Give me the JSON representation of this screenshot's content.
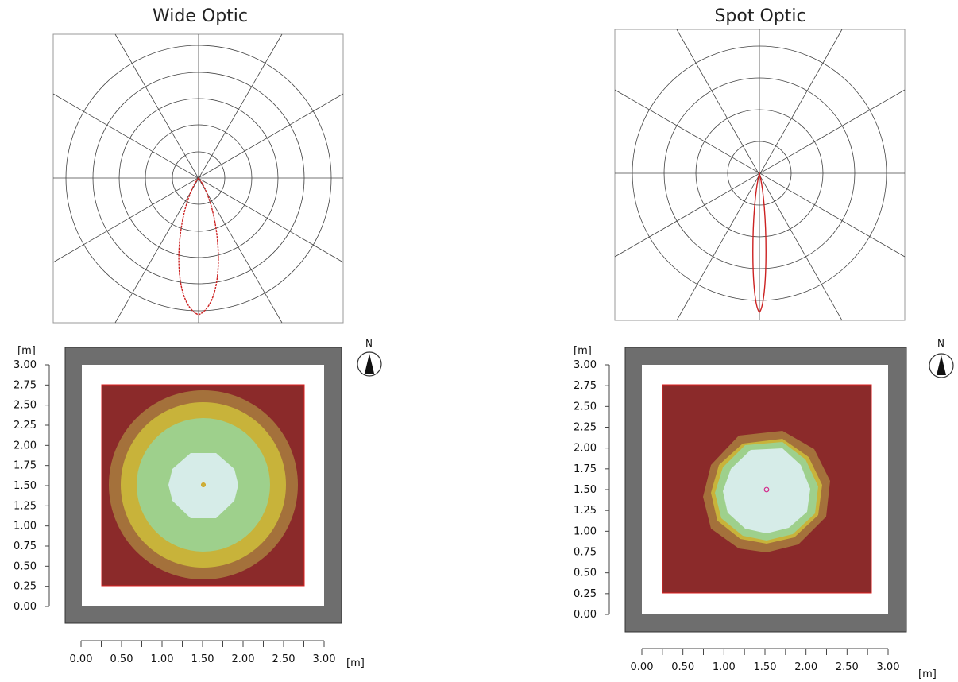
{
  "panels": [
    {
      "title": "Wide Optic",
      "unit_label": "[m]",
      "north_label": "N",
      "axis_ticks": [
        "0.00",
        "0.25",
        "0.50",
        "0.75",
        "1.00",
        "1.25",
        "1.50",
        "1.75",
        "2.00",
        "2.25",
        "2.50",
        "2.75",
        "3.00"
      ],
      "x_axis_ticks": [
        "0.00",
        "0.50",
        "1.00",
        "1.50",
        "2.00",
        "2.50",
        "3.00"
      ],
      "polar_curve_color": "#cc2222",
      "contour_colors": [
        "#8b2a2a",
        "#a4713b",
        "#c8b33a",
        "#9ed08c",
        "#d6ece8"
      ]
    },
    {
      "title": "Spot Optic",
      "unit_label": "[m]",
      "north_label": "N",
      "axis_ticks": [
        "0.00",
        "0.25",
        "0.50",
        "0.75",
        "1.00",
        "1.25",
        "1.50",
        "1.75",
        "2.00",
        "2.25",
        "2.50",
        "2.75",
        "3.00"
      ],
      "x_axis_ticks": [
        "0.00",
        "0.50",
        "1.00",
        "1.50",
        "2.00",
        "2.50",
        "3.00"
      ],
      "polar_curve_color": "#cc2222",
      "contour_colors": [
        "#8b2a2a",
        "#a4713b",
        "#c8b33a",
        "#9ed08c",
        "#d6ece8"
      ]
    }
  ]
}
